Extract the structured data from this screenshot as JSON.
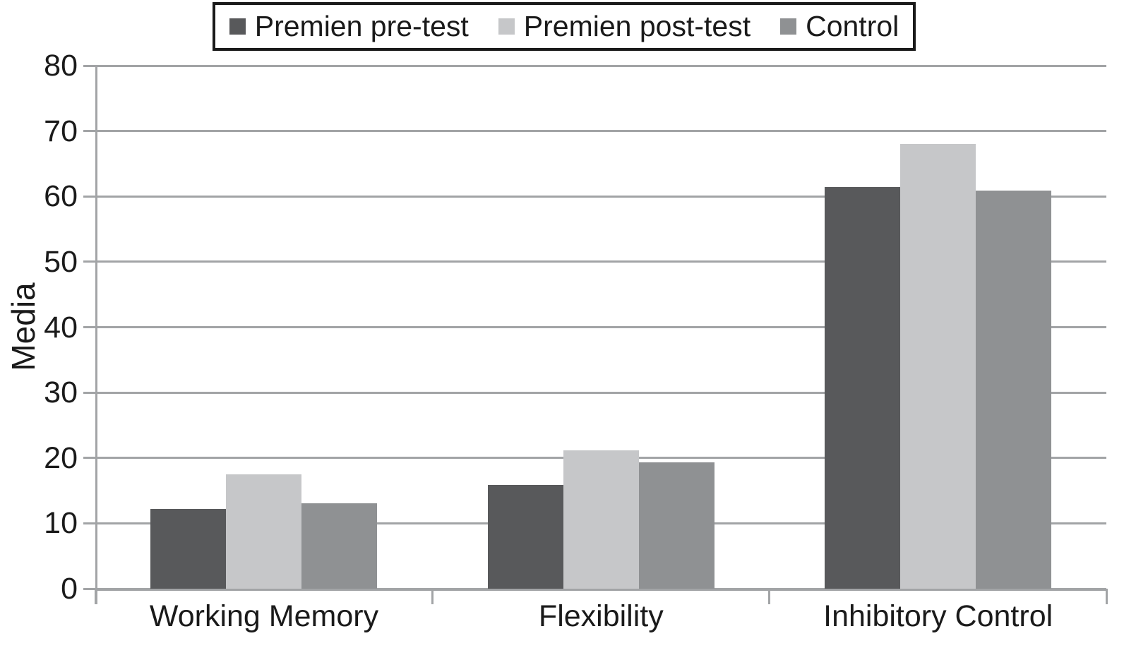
{
  "chart_data": {
    "type": "bar",
    "title": "",
    "xlabel": "",
    "ylabel": "Media",
    "ylim": [
      0,
      80
    ],
    "yticks": [
      0,
      10,
      20,
      30,
      40,
      50,
      60,
      70,
      80
    ],
    "grid": true,
    "legend_position": "top",
    "categories": [
      "Working Memory",
      "Flexibility",
      "Inhibitory Control"
    ],
    "series": [
      {
        "name": "Premien pre-test",
        "color": "#58595b",
        "values": [
          12.2,
          15.9,
          61.4
        ]
      },
      {
        "name": "Premien post-test",
        "color": "#c6c7c9",
        "values": [
          17.5,
          21.2,
          68.0
        ]
      },
      {
        "name": "Control",
        "color": "#8f9193",
        "values": [
          13.1,
          19.3,
          60.9
        ]
      }
    ],
    "colors": {
      "grid": "#a2a4a6",
      "text": "#1a1a1a",
      "legend_border": "#1a1a1a",
      "background": "#ffffff"
    }
  }
}
